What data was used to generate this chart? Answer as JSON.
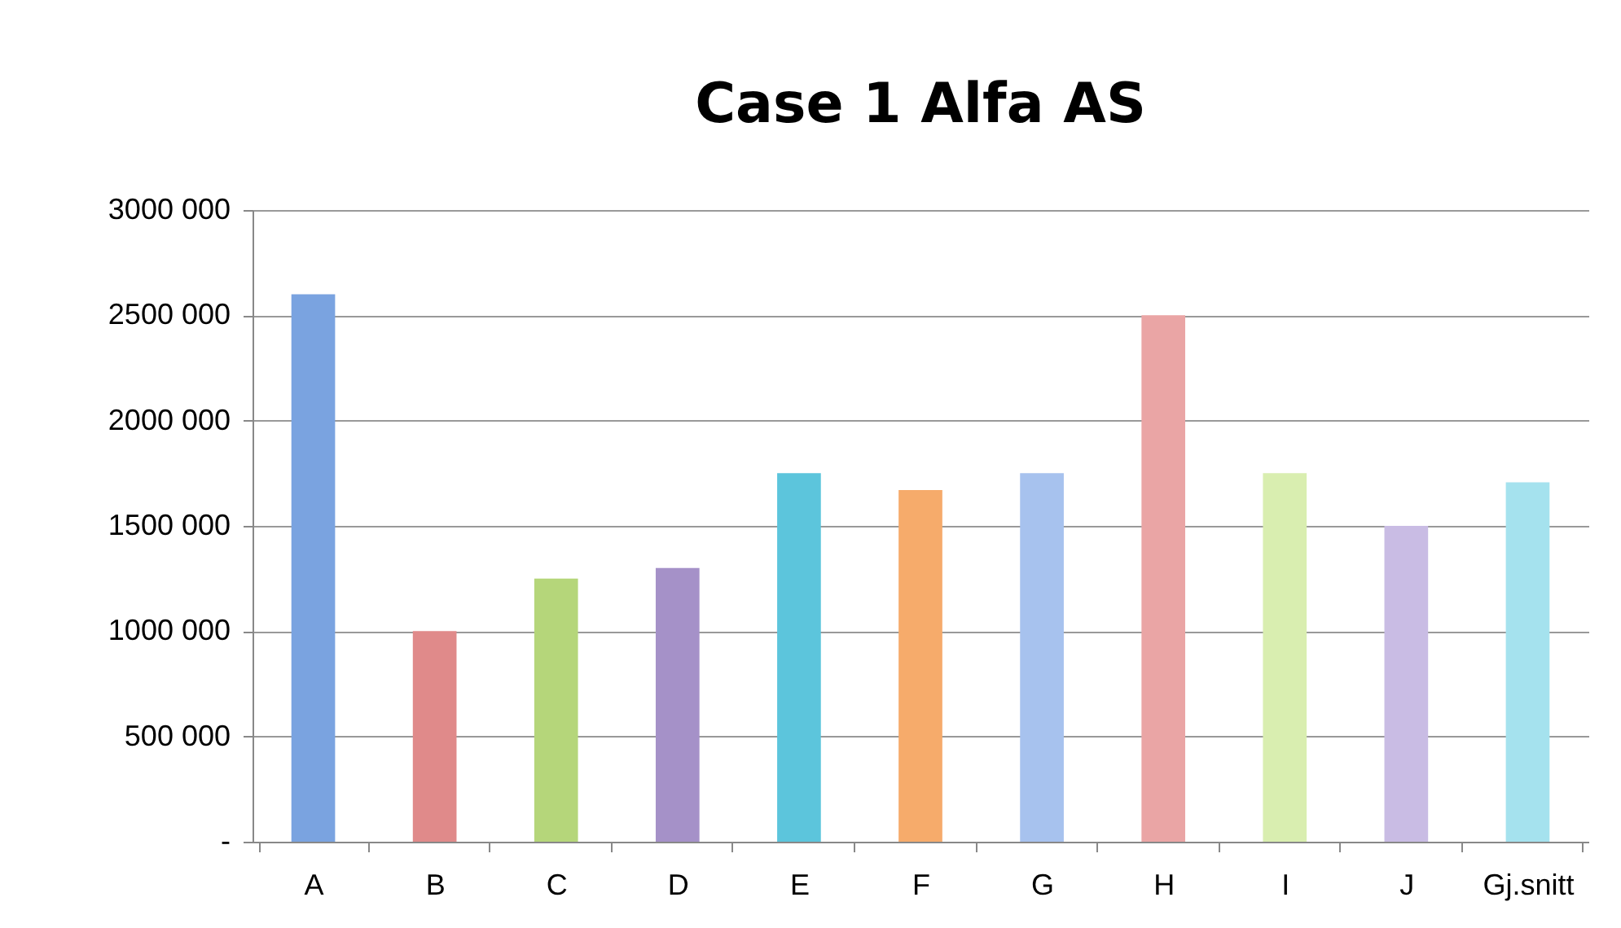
{
  "chart_data": {
    "type": "bar",
    "title": "Case 1 Alfa AS",
    "categories": [
      "A",
      "B",
      "C",
      "D",
      "E",
      "F",
      "G",
      "H",
      "I",
      "J",
      "Gj.snitt"
    ],
    "values": [
      2600000,
      1000000,
      1250000,
      1300000,
      1750000,
      1670000,
      1750000,
      2500000,
      1750000,
      1500000,
      1707000
    ],
    "colors": [
      "#7aa3e0",
      "#e08a8a",
      "#b5d67a",
      "#a591c8",
      "#5cc5dc",
      "#f6ab6b",
      "#a7c2ee",
      "#eaa5a5",
      "#d9eeb0",
      "#c9bce4",
      "#a5e2ee"
    ],
    "ylim": [
      0,
      3000000
    ],
    "yticks": [
      {
        "value": 0,
        "label": "-"
      },
      {
        "value": 500000,
        "label": "500 000"
      },
      {
        "value": 1000000,
        "label": "1000 000"
      },
      {
        "value": 1500000,
        "label": "1500 000"
      },
      {
        "value": 2000000,
        "label": "2000 000"
      },
      {
        "value": 2500000,
        "label": "2500 000"
      },
      {
        "value": 3000000,
        "label": "3000 000"
      }
    ],
    "grid": "y",
    "legend": false
  }
}
